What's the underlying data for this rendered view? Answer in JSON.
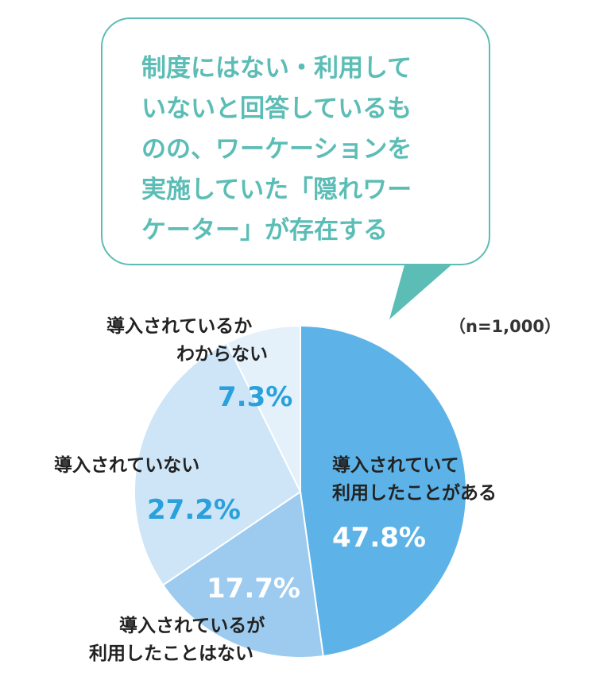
{
  "colors": {
    "callout_border": "#5bbdb5",
    "callout_text": "#5bbdb5",
    "callout_tail": "#5bbdb5",
    "dark_text": "#222222",
    "value_blue": "#2aa0dc",
    "value_white": "#ffffff",
    "slice_1": "#5db3e8",
    "slice_2": "#9ccbef",
    "slice_3": "#cde5f7",
    "slice_4": "#e4f1fb"
  },
  "callout": {
    "lines": [
      "制度にはない・利用して",
      "いないと回答しているも",
      "のの、ワーケーションを",
      "実施していた「隠れワー",
      "ケーター」が存在する"
    ]
  },
  "sample_note": "（n=1,000）",
  "chart_data": {
    "type": "pie",
    "start_angle_deg": 0,
    "direction": "clockwise",
    "slices": [
      {
        "label_lines": [
          "導入されていて",
          "利用したことがある"
        ],
        "value": 47.8,
        "value_label": "47.8%",
        "color": "#5db3e8",
        "value_color": "#ffffff"
      },
      {
        "label_lines": [
          "導入されているが",
          "利用したことはない"
        ],
        "value": 17.7,
        "value_label": "17.7%",
        "color": "#9ccbef",
        "value_color": "#ffffff"
      },
      {
        "label_lines": [
          "導入されていない"
        ],
        "value": 27.2,
        "value_label": "27.2%",
        "color": "#cde5f7",
        "value_color": "#2aa0dc"
      },
      {
        "label_lines": [
          "導入されているか",
          "わからない"
        ],
        "value": 7.3,
        "value_label": "7.3%",
        "color": "#e4f1fb",
        "value_color": "#2aa0dc"
      }
    ]
  }
}
